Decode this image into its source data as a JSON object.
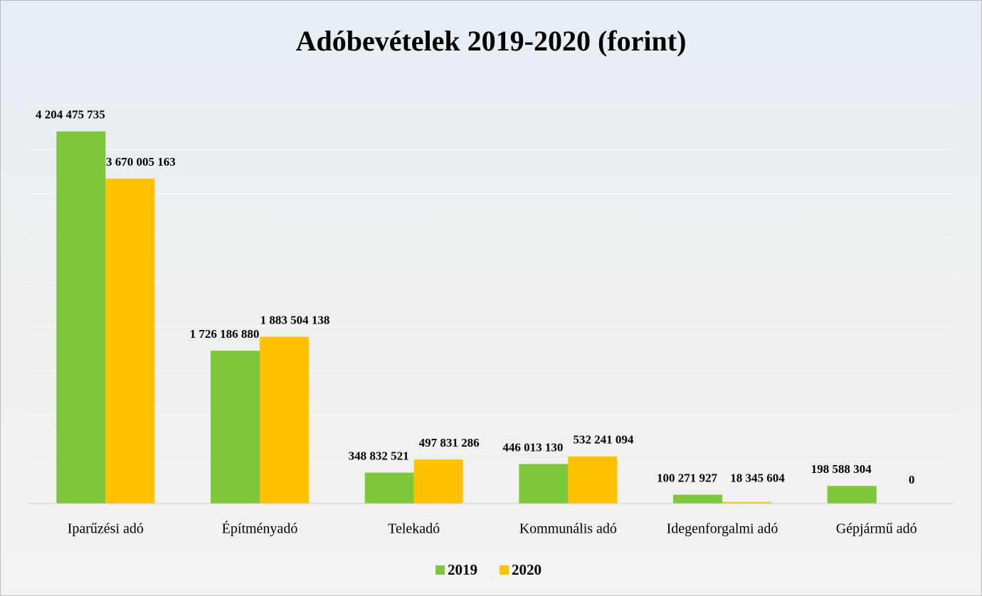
{
  "chart_data": {
    "type": "bar",
    "title": "Adóbevételek 2019-2020 (forint)",
    "categories": [
      "Iparűzési adó",
      "Építményadó",
      "Telekadó",
      "Kommunális adó",
      "Idegenforgalmi adó",
      "Gépjármű adó"
    ],
    "series": [
      {
        "name": "2019",
        "color": "#7dc738",
        "values": [
          4204475735,
          1726186880,
          348832521,
          446013130,
          100271927,
          198588304
        ],
        "value_labels": [
          "4 204 475 735",
          "1 726 186 880",
          "348 832 521",
          "446 013 130",
          "100 271 927",
          "198 588 304"
        ]
      },
      {
        "name": "2020",
        "color": "#ffc000",
        "values": [
          3670005163,
          1883504138,
          497831286,
          532241094,
          18345604,
          0
        ],
        "value_labels": [
          "3 670 005 163",
          "1 883 504 138",
          "497 831 286",
          "532 241 094",
          "18 345 604",
          "0"
        ]
      }
    ],
    "ylim": [
      0,
      4500000000
    ],
    "yticks": [
      0,
      500000000,
      1000000000,
      1500000000,
      2000000000,
      2500000000,
      3000000000,
      3500000000,
      4000000000,
      4500000000
    ],
    "grid": true,
    "legend": "bottom"
  }
}
